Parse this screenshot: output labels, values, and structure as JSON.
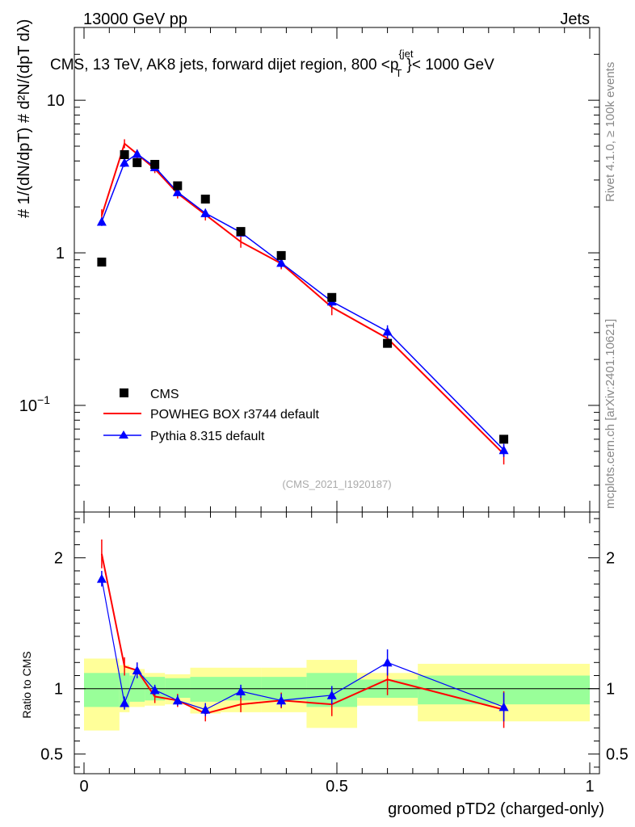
{
  "header": {
    "left": "13000 GeV pp",
    "right": "Jets",
    "title": "CMS, 13 TeV, AK8 jets, forward dijet region, 800 <p",
    "title_sup": "{jet",
    "title_sub": "T",
    "title_tail": "}< 1000 GeV"
  },
  "side_labels": {
    "rivet": "Rivet 4.1.0, ≥ 100k events",
    "mcplots": "mcplots.cern.ch [arXiv:2401.10621]"
  },
  "analysis_tag": "(CMS_2021_I1920187)",
  "y_label_main": "# 1/(dN/dpT) # d²N/(dpT dλ)",
  "y_label_ratio": "Ratio to CMS",
  "x_label": "groomed pTD2 (charged-only)",
  "legend": {
    "cms": "CMS",
    "powheg": "POWHEG BOX r3744 default",
    "pythia": "Pythia 8.315 default"
  },
  "colors": {
    "cms": "#000000",
    "powheg": "#ff0000",
    "pythia": "#0000ff",
    "band_inner": "#99ff99",
    "band_outer": "#ffff99"
  },
  "chart_data": [
    {
      "type": "line",
      "scale": "log",
      "xlim": [
        0,
        1
      ],
      "ylim": [
        0.02,
        30
      ],
      "y_ticks": [
        {
          "value": 0.1,
          "label": "10",
          "sup": "−1"
        },
        {
          "value": 1,
          "label": "1"
        },
        {
          "value": 10,
          "label": "10"
        }
      ],
      "x": [
        0.035,
        0.08,
        0.105,
        0.14,
        0.185,
        0.24,
        0.31,
        0.39,
        0.49,
        0.6,
        0.83
      ],
      "series": [
        {
          "name": "CMS",
          "values": [
            0.87,
            4.4,
            3.9,
            3.8,
            2.75,
            2.25,
            1.38,
            0.96,
            0.51,
            0.255,
            0.06
          ]
        },
        {
          "name": "POWHEG BOX r3744 default",
          "values": [
            1.75,
            5.2,
            4.45,
            3.55,
            2.45,
            1.78,
            1.18,
            0.85,
            0.44,
            0.275,
            0.048
          ],
          "errors": [
            0.18,
            0.35,
            0.3,
            0.22,
            0.18,
            0.15,
            0.1,
            0.07,
            0.05,
            0.03,
            0.007
          ]
        },
        {
          "name": "Pythia 8.315 default",
          "values": [
            1.6,
            3.9,
            4.45,
            3.65,
            2.5,
            1.82,
            1.36,
            0.86,
            0.48,
            0.305,
            0.051
          ],
          "errors": [
            0.1,
            0.25,
            0.25,
            0.2,
            0.15,
            0.12,
            0.08,
            0.06,
            0.04,
            0.03,
            0.005
          ]
        }
      ]
    },
    {
      "type": "line",
      "scale": "linear",
      "xlim": [
        0,
        1
      ],
      "ylim": [
        0.35,
        2.35
      ],
      "y_ticks": [
        {
          "value": 0.5,
          "label": "0.5"
        },
        {
          "value": 1,
          "label": "1"
        },
        {
          "value": 2,
          "label": "2"
        }
      ],
      "x_ticks": [
        {
          "value": 0,
          "label": "0"
        },
        {
          "value": 0.5,
          "label": "0.5"
        },
        {
          "value": 1,
          "label": "1"
        }
      ],
      "x": [
        0.035,
        0.08,
        0.105,
        0.14,
        0.185,
        0.24,
        0.31,
        0.39,
        0.49,
        0.6,
        0.83
      ],
      "bins": [
        [
          0,
          0.07
        ],
        [
          0.07,
          0.09
        ],
        [
          0.09,
          0.12
        ],
        [
          0.12,
          0.16
        ],
        [
          0.16,
          0.21
        ],
        [
          0.21,
          0.27
        ],
        [
          0.27,
          0.35
        ],
        [
          0.35,
          0.44
        ],
        [
          0.44,
          0.54
        ],
        [
          0.54,
          0.66
        ],
        [
          0.66,
          1.0
        ]
      ],
      "band_inner": [
        [
          0.86,
          1.12
        ],
        [
          0.86,
          1.12
        ],
        [
          0.9,
          1.1
        ],
        [
          0.91,
          1.09
        ],
        [
          0.93,
          1.08
        ],
        [
          0.9,
          1.09
        ],
        [
          0.91,
          1.09
        ],
        [
          0.91,
          1.09
        ],
        [
          0.86,
          1.12
        ],
        [
          0.93,
          1.07
        ],
        [
          0.88,
          1.1
        ]
      ],
      "band_outer": [
        [
          0.68,
          1.23
        ],
        [
          0.82,
          1.18
        ],
        [
          0.86,
          1.15
        ],
        [
          0.87,
          1.12
        ],
        [
          0.88,
          1.11
        ],
        [
          0.81,
          1.16
        ],
        [
          0.82,
          1.16
        ],
        [
          0.82,
          1.16
        ],
        [
          0.7,
          1.22
        ],
        [
          0.87,
          1.12
        ],
        [
          0.75,
          1.19
        ]
      ],
      "series": [
        {
          "name": "POWHEG BOX r3744 default",
          "values": [
            2.03,
            1.17,
            1.14,
            0.94,
            0.91,
            0.81,
            0.88,
            0.91,
            0.88,
            1.07,
            0.84
          ],
          "errors": [
            0.11,
            0.07,
            0.06,
            0.05,
            0.05,
            0.06,
            0.06,
            0.06,
            0.09,
            0.12,
            0.14
          ]
        },
        {
          "name": "Pythia 8.315 default",
          "values": [
            1.84,
            0.89,
            1.14,
            0.99,
            0.91,
            0.84,
            0.98,
            0.91,
            0.95,
            1.2,
            0.86
          ],
          "errors": [
            0.06,
            0.05,
            0.06,
            0.04,
            0.04,
            0.05,
            0.05,
            0.05,
            0.07,
            0.1,
            0.11
          ]
        }
      ],
      "reference_line": 1
    }
  ]
}
